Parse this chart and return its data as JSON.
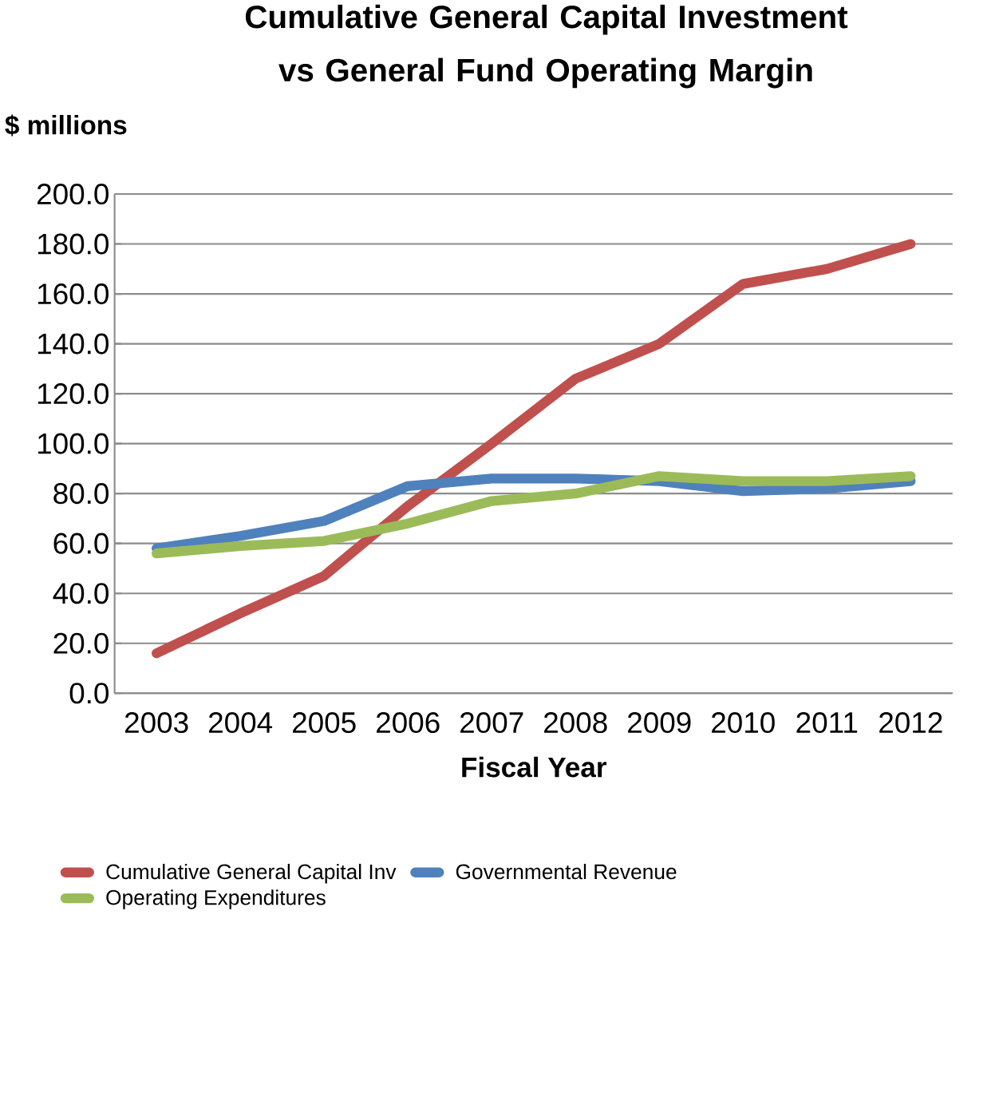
{
  "chart_data": {
    "type": "line",
    "title": "Cumulative General Capital Investment vs General Fund Operating Margin",
    "xlabel": "Fiscal Year",
    "ylabel": "$ millions",
    "categories": [
      "2003",
      "2004",
      "2005",
      "2006",
      "2007",
      "2008",
      "2009",
      "2010",
      "2011",
      "2012"
    ],
    "series": [
      {
        "name": "Cumulative General Capital Inv",
        "color": "#c0504d",
        "values": [
          16,
          32,
          47,
          75,
          100,
          126,
          140,
          164,
          170,
          180
        ]
      },
      {
        "name": "Governmental Revenue",
        "color": "#4f81bd",
        "values": [
          58,
          63,
          69,
          83,
          86,
          86,
          85,
          81,
          82,
          85
        ]
      },
      {
        "name": "Operating Expenditures",
        "color": "#9bbb59",
        "values": [
          56,
          59,
          61,
          68,
          77,
          80,
          87,
          85,
          85,
          87
        ]
      }
    ],
    "ylim": [
      0,
      200
    ],
    "yticks": [
      {
        "value": 0,
        "label": "0.0"
      },
      {
        "value": 20,
        "label": "20.0"
      },
      {
        "value": 40,
        "label": "40.0"
      },
      {
        "value": 60,
        "label": "60.0"
      },
      {
        "value": 80,
        "label": "80.0"
      },
      {
        "value": 100,
        "label": "100.0"
      },
      {
        "value": 120,
        "label": "120.0"
      },
      {
        "value": 140,
        "label": "140.0"
      },
      {
        "value": 160,
        "label": "160.0"
      },
      {
        "value": 180,
        "label": "180.0"
      },
      {
        "value": 200,
        "label": "200.0"
      }
    ],
    "grid": "y",
    "legend": "bottom"
  }
}
